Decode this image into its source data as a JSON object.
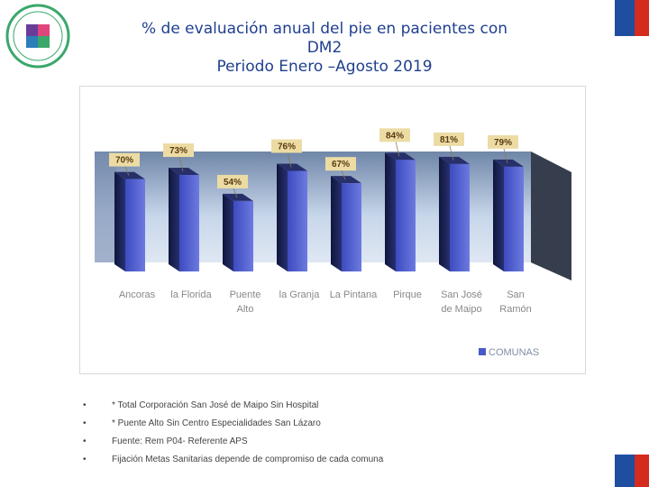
{
  "title": {
    "line1": "% de evaluación anual del pie en pacientes con",
    "line2": "DM2",
    "line3": "Periodo Enero –Agosto 2019"
  },
  "colors": {
    "bar": "#4a58c9",
    "bar_dark": "#1e2a6b",
    "wall": "#3b4252",
    "floor": "#c9cdd6",
    "label_bg": "#e9d79a"
  },
  "chart_data": {
    "type": "bar",
    "title": "% de evaluación anual del pie en pacientes con DM2 Periodo Enero –Agosto 2019",
    "categories": [
      [
        "Ancoras"
      ],
      [
        "la Florida"
      ],
      [
        "Puente",
        "Alto"
      ],
      [
        "la Granja"
      ],
      [
        "La Pintana"
      ],
      [
        "Pirque"
      ],
      [
        "San José",
        "de Maipo"
      ],
      [
        "San",
        "Ramón"
      ]
    ],
    "values": [
      70,
      73,
      54,
      76,
      67,
      84,
      81,
      79
    ],
    "value_labels": [
      "70%",
      "73%",
      "54%",
      "76%",
      "67%",
      "84%",
      "81%",
      "79%"
    ],
    "series": [
      {
        "name": "COMUNAS",
        "values": [
          70,
          73,
          54,
          76,
          67,
          84,
          81,
          79
        ]
      }
    ],
    "legend": "COMUNAS",
    "ylim": [
      0,
      100
    ],
    "xlabel": "",
    "ylabel": ""
  },
  "bullets": [
    "* Total Corporación San José de Maipo Sin Hospital",
    "* Puente Alto Sin Centro Especialidades San Lázaro",
    "Fuente: Rem P04- Referente APS",
    "Fijación Metas Sanitarias depende de compromiso de cada comuna"
  ],
  "bullet_marker": "•"
}
